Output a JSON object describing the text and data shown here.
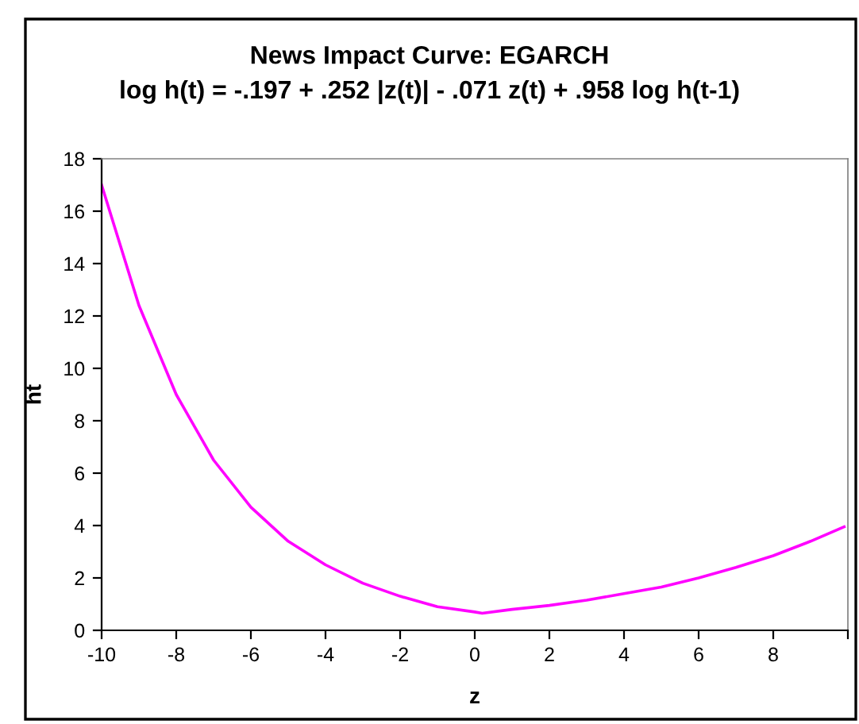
{
  "chart_data": {
    "type": "line",
    "title": "News Impact Curve: EGARCH",
    "subtitle": "log h(t) = -.197 + .252 |z(t)| - .071 z(t) + .958 log h(t-1)",
    "xlabel": "z",
    "ylabel": "ht",
    "x": [
      -10,
      -9,
      -8,
      -7,
      -6,
      -5,
      -4,
      -3,
      -2,
      -1,
      0,
      0.2,
      1,
      2,
      3,
      4,
      5,
      6,
      7,
      8,
      9,
      9.9
    ],
    "series": [
      {
        "color": "#ff00ff",
        "values": [
          17.0,
          12.4,
          9.0,
          6.5,
          4.7,
          3.4,
          2.5,
          1.8,
          1.3,
          0.9,
          0.7,
          0.65,
          0.8,
          0.95,
          1.15,
          1.4,
          1.65,
          2.0,
          2.4,
          2.85,
          3.4,
          3.95
        ]
      }
    ],
    "xlim": [
      -10,
      10
    ],
    "xticks": [
      -10,
      -8,
      -6,
      -4,
      -2,
      0,
      2,
      4,
      6,
      8,
      {
        "value": 10,
        "label": null
      }
    ],
    "ylim": [
      0,
      18
    ],
    "yticks": [
      0,
      2,
      4,
      6,
      8,
      10,
      12,
      14,
      16,
      18
    ],
    "grid": false,
    "marker": "none",
    "line_style": "solid"
  }
}
